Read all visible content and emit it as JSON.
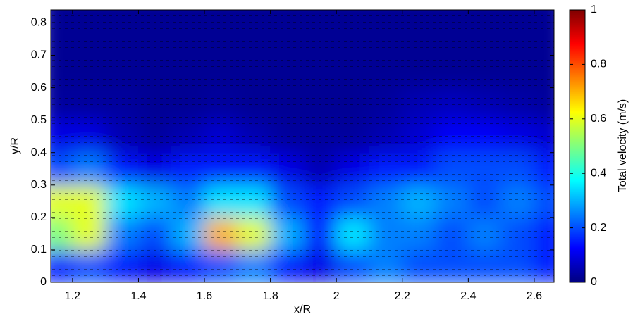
{
  "chart_data": {
    "type": "heatmap",
    "xlabel": "x/R",
    "ylabel": "y/R",
    "xlim": [
      1.134,
      2.66
    ],
    "ylim": [
      0,
      0.84
    ],
    "xticks": [
      1.2,
      1.4,
      1.6,
      1.8,
      2,
      2.2,
      2.4,
      2.6
    ],
    "yticks": [
      0,
      0.1,
      0.2,
      0.3,
      0.4,
      0.5,
      0.6,
      0.7,
      0.8
    ],
    "x": [
      1.15,
      1.25,
      1.35,
      1.45,
      1.55,
      1.65,
      1.75,
      1.85,
      1.95,
      2.05,
      2.15,
      2.25,
      2.35,
      2.45,
      2.55,
      2.65
    ],
    "y": [
      0.05,
      0.15,
      0.25,
      0.35,
      0.45,
      0.55,
      0.65,
      0.75,
      0.85
    ],
    "z": [
      [
        0.15,
        0.2,
        0.15,
        0.1,
        0.15,
        0.2,
        0.25,
        0.15,
        0.1,
        0.2,
        0.25,
        0.2,
        0.2,
        0.2,
        0.2,
        0.15
      ],
      [
        0.5,
        0.6,
        0.25,
        0.2,
        0.3,
        0.7,
        0.6,
        0.3,
        0.15,
        0.35,
        0.25,
        0.25,
        0.2,
        0.25,
        0.2,
        0.15
      ],
      [
        0.6,
        0.6,
        0.35,
        0.3,
        0.25,
        0.35,
        0.35,
        0.2,
        0.15,
        0.2,
        0.25,
        0.3,
        0.25,
        0.2,
        0.25,
        0.2
      ],
      [
        0.2,
        0.25,
        0.15,
        0.1,
        0.15,
        0.15,
        0.15,
        0.1,
        0.05,
        0.1,
        0.15,
        0.15,
        0.2,
        0.2,
        0.2,
        0.15
      ],
      [
        0.1,
        0.1,
        0.05,
        0.03,
        0.05,
        0.08,
        0.05,
        0.03,
        0.03,
        0.03,
        0.05,
        0.08,
        0.12,
        0.12,
        0.1,
        0.08
      ],
      [
        0.03,
        0.03,
        0.03,
        0.02,
        0.02,
        0.03,
        0.02,
        0.02,
        0.02,
        0.02,
        0.03,
        0.05,
        0.06,
        0.05,
        0.04,
        0.03
      ],
      [
        0.02,
        0.02,
        0.02,
        0.02,
        0.02,
        0.02,
        0.02,
        0.02,
        0.02,
        0.02,
        0.02,
        0.02,
        0.02,
        0.02,
        0.02,
        0.02
      ],
      [
        0.02,
        0.02,
        0.02,
        0.02,
        0.02,
        0.02,
        0.02,
        0.02,
        0.02,
        0.02,
        0.02,
        0.02,
        0.02,
        0.02,
        0.02,
        0.02
      ],
      [
        0.02,
        0.02,
        0.02,
        0.02,
        0.02,
        0.02,
        0.02,
        0.02,
        0.02,
        0.02,
        0.02,
        0.02,
        0.02,
        0.02,
        0.02,
        0.02
      ]
    ],
    "colorbar": {
      "label": "Total velocity (m/s)",
      "lim": [
        0,
        1
      ],
      "ticks": [
        0,
        0.2,
        0.4,
        0.6,
        0.8,
        1
      ]
    }
  }
}
